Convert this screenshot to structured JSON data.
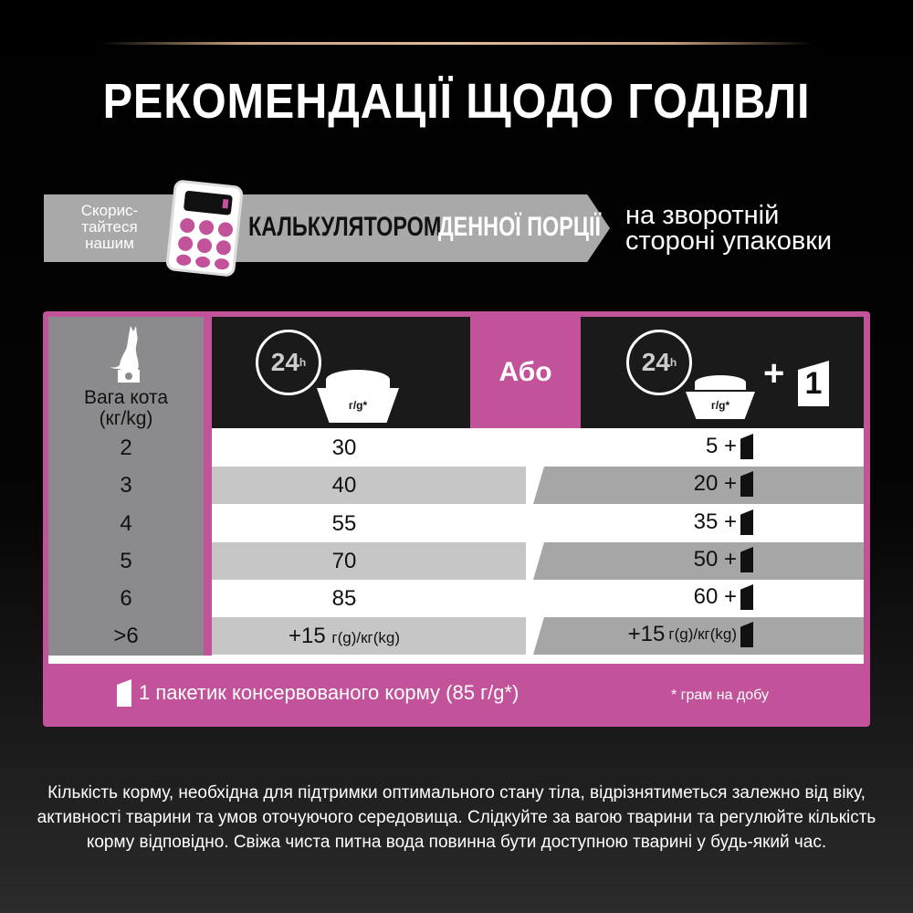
{
  "title": "РЕКОМЕНДАЦІЇ ЩОДО ГОДІВЛІ",
  "banner": {
    "use": "Скорис-тайтеся нашим",
    "calculator": "КАЛЬКУЛЯТОРОМ",
    "daily": "ДЕННОЇ ПОРЦІЇ",
    "back_line1": "на зворотній",
    "back_line2": "стороні упаковки"
  },
  "table": {
    "weight_label_1": "Вага кота",
    "weight_label_2": "(кг/kg)",
    "clock_label": "24",
    "clock_unit": "h",
    "bowl_label": "г/g*",
    "or_label": "Або",
    "plus": "+",
    "pouch_count": "1",
    "rows": [
      {
        "weight": "2",
        "dry": "30",
        "mixed": "5 +"
      },
      {
        "weight": "3",
        "dry": "40",
        "mixed": "20 +"
      },
      {
        "weight": "4",
        "dry": "55",
        "mixed": "35 +"
      },
      {
        "weight": "5",
        "dry": "70",
        "mixed": "50 +"
      },
      {
        "weight": "6",
        "dry": "85",
        "mixed": "60 +"
      },
      {
        "weight": ">6",
        "dry": "+15",
        "dry_unit": "г(g)/кг(kg)",
        "mixed": "+15",
        "mixed_unit": "г(g)/кг(kg)"
      }
    ]
  },
  "footer": {
    "pouch_note": "1 пакетик консервованого корму (85 г/g*)",
    "asterisk_note": "* грам на добу"
  },
  "description": "Кількість корму, необхідна для підтримки оптимального стану тіла, відрізнятиметься залежно від віку, активності тварини та умов оточуючого середовища. Слідкуйте за вагою тварини та регулюйте кількість корму відповідно. Свіжа чиста питна вода повинна бути доступною тварині у будь-який час.",
  "colors": {
    "accent": "#c2529a",
    "background": "#000000",
    "gold": "#c9a27a"
  }
}
